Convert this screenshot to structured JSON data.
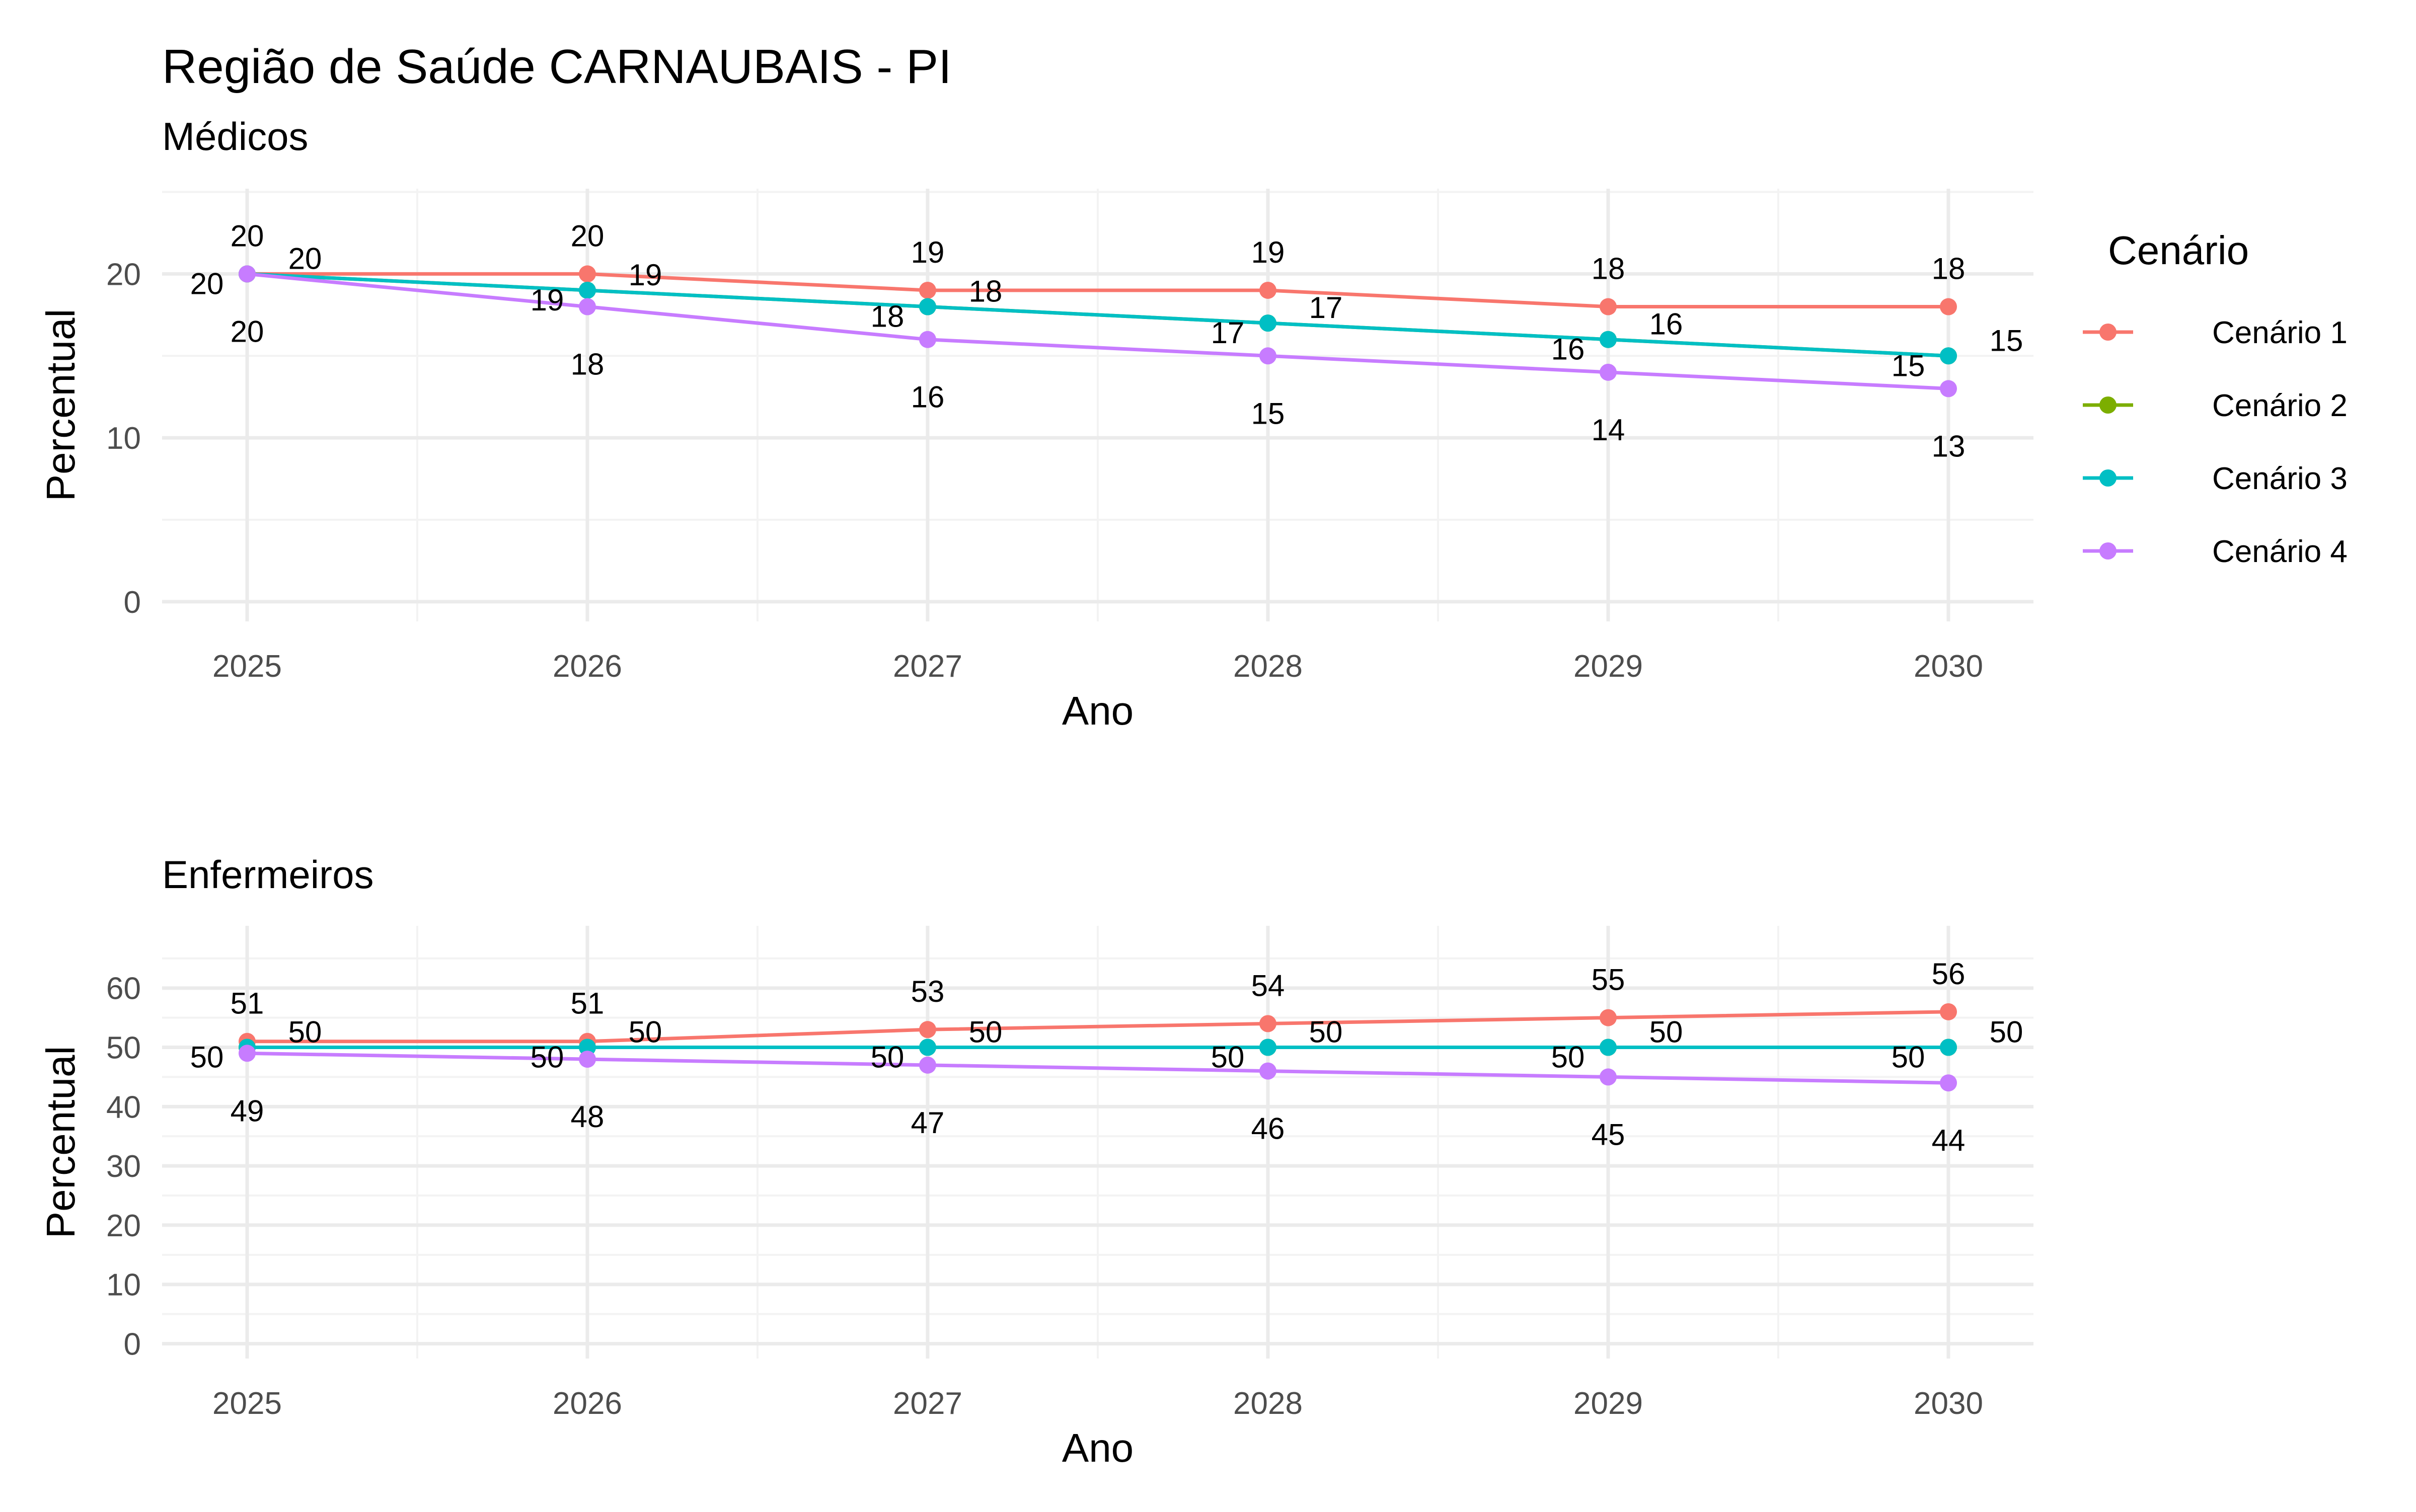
{
  "figure": {
    "title": "Região de Saúde CARNAUBAIS - PI"
  },
  "legend": {
    "title": "Cenário",
    "items": [
      {
        "label": "Cenário 1",
        "color": "#F8766D"
      },
      {
        "label": "Cenário 2",
        "color": "#7CAE00"
      },
      {
        "label": "Cenário 3",
        "color": "#00BFC4"
      },
      {
        "label": "Cenário 4",
        "color": "#C77CFF"
      }
    ]
  },
  "chart_data": [
    {
      "type": "line",
      "title": "Médicos",
      "xlabel": "Ano",
      "ylabel": "Percentual",
      "x": [
        2025,
        2026,
        2027,
        2028,
        2029,
        2030
      ],
      "xlim": [
        2024.75,
        2030.25
      ],
      "ylim": [
        -1.2,
        25.2
      ],
      "yticks": [
        0,
        10,
        20
      ],
      "grid": true,
      "series": [
        {
          "name": "Cenário 1",
          "color": "#F8766D",
          "values": [
            20,
            20,
            19,
            19,
            18,
            18
          ]
        },
        {
          "name": "Cenário 2",
          "color": "#7CAE00",
          "values": [
            20,
            19,
            18,
            17,
            16,
            15
          ]
        },
        {
          "name": "Cenário 3",
          "color": "#00BFC4",
          "values": [
            20,
            19,
            18,
            17,
            16,
            15
          ]
        },
        {
          "name": "Cenário 4",
          "color": "#C77CFF",
          "values": [
            20,
            18,
            16,
            15,
            14,
            13
          ]
        }
      ],
      "data_labels": [
        {
          "x": 2025,
          "y": 20,
          "text": "20"
        },
        {
          "x": 2025,
          "y": 20,
          "text": "20"
        },
        {
          "x": 2025,
          "y": 20,
          "text": "20"
        },
        {
          "x": 2025,
          "y": 20,
          "text": "20"
        },
        {
          "x": 2026,
          "y": 20,
          "text": "20"
        },
        {
          "x": 2026,
          "y": 19,
          "text": "19"
        },
        {
          "x": 2026,
          "y": 19,
          "text": "19"
        },
        {
          "x": 2026,
          "y": 18,
          "text": "18"
        },
        {
          "x": 2027,
          "y": 19,
          "text": "19"
        },
        {
          "x": 2027,
          "y": 18,
          "text": "18"
        },
        {
          "x": 2027,
          "y": 18,
          "text": "18"
        },
        {
          "x": 2027,
          "y": 16,
          "text": "16"
        },
        {
          "x": 2028,
          "y": 19,
          "text": "19"
        },
        {
          "x": 2028,
          "y": 17,
          "text": "17"
        },
        {
          "x": 2028,
          "y": 17,
          "text": "17"
        },
        {
          "x": 2028,
          "y": 15,
          "text": "15"
        },
        {
          "x": 2029,
          "y": 18,
          "text": "18"
        },
        {
          "x": 2029,
          "y": 16,
          "text": "16"
        },
        {
          "x": 2029,
          "y": 16,
          "text": "16"
        },
        {
          "x": 2029,
          "y": 14,
          "text": "14"
        },
        {
          "x": 2030,
          "y": 18,
          "text": "18"
        },
        {
          "x": 2030,
          "y": 15,
          "text": "15"
        },
        {
          "x": 2030,
          "y": 15,
          "text": "15"
        },
        {
          "x": 2030,
          "y": 13,
          "text": "13"
        }
      ]
    },
    {
      "type": "line",
      "title": "Enfermeiros",
      "xlabel": "Ano",
      "ylabel": "Percentual",
      "x": [
        2025,
        2026,
        2027,
        2028,
        2029,
        2030
      ],
      "xlim": [
        2024.75,
        2030.25
      ],
      "ylim": [
        -2.5,
        70.5
      ],
      "yticks": [
        0,
        10,
        20,
        30,
        40,
        50,
        60
      ],
      "grid": true,
      "series": [
        {
          "name": "Cenário 1",
          "color": "#F8766D",
          "values": [
            51,
            51,
            53,
            54,
            55,
            56
          ]
        },
        {
          "name": "Cenário 2",
          "color": "#7CAE00",
          "values": [
            50,
            50,
            50,
            50,
            50,
            50
          ]
        },
        {
          "name": "Cenário 3",
          "color": "#00BFC4",
          "values": [
            50,
            50,
            50,
            50,
            50,
            50
          ]
        },
        {
          "name": "Cenário 4",
          "color": "#C77CFF",
          "values": [
            49,
            48,
            47,
            46,
            45,
            44
          ]
        }
      ],
      "data_labels": [
        {
          "x": 2025,
          "y": 51,
          "text": "51"
        },
        {
          "x": 2025,
          "y": 50,
          "text": "50"
        },
        {
          "x": 2025,
          "y": 50,
          "text": "50"
        },
        {
          "x": 2025,
          "y": 49,
          "text": "49"
        },
        {
          "x": 2026,
          "y": 51,
          "text": "51"
        },
        {
          "x": 2026,
          "y": 50,
          "text": "50"
        },
        {
          "x": 2026,
          "y": 50,
          "text": "50"
        },
        {
          "x": 2026,
          "y": 48,
          "text": "48"
        },
        {
          "x": 2027,
          "y": 53,
          "text": "53"
        },
        {
          "x": 2027,
          "y": 50,
          "text": "50"
        },
        {
          "x": 2027,
          "y": 50,
          "text": "50"
        },
        {
          "x": 2027,
          "y": 47,
          "text": "47"
        },
        {
          "x": 2028,
          "y": 54,
          "text": "54"
        },
        {
          "x": 2028,
          "y": 50,
          "text": "50"
        },
        {
          "x": 2028,
          "y": 50,
          "text": "50"
        },
        {
          "x": 2028,
          "y": 46,
          "text": "46"
        },
        {
          "x": 2029,
          "y": 55,
          "text": "55"
        },
        {
          "x": 2029,
          "y": 50,
          "text": "50"
        },
        {
          "x": 2029,
          "y": 50,
          "text": "50"
        },
        {
          "x": 2029,
          "y": 45,
          "text": "45"
        },
        {
          "x": 2030,
          "y": 56,
          "text": "56"
        },
        {
          "x": 2030,
          "y": 50,
          "text": "50"
        },
        {
          "x": 2030,
          "y": 50,
          "text": "50"
        },
        {
          "x": 2030,
          "y": 44,
          "text": "44"
        }
      ]
    }
  ]
}
